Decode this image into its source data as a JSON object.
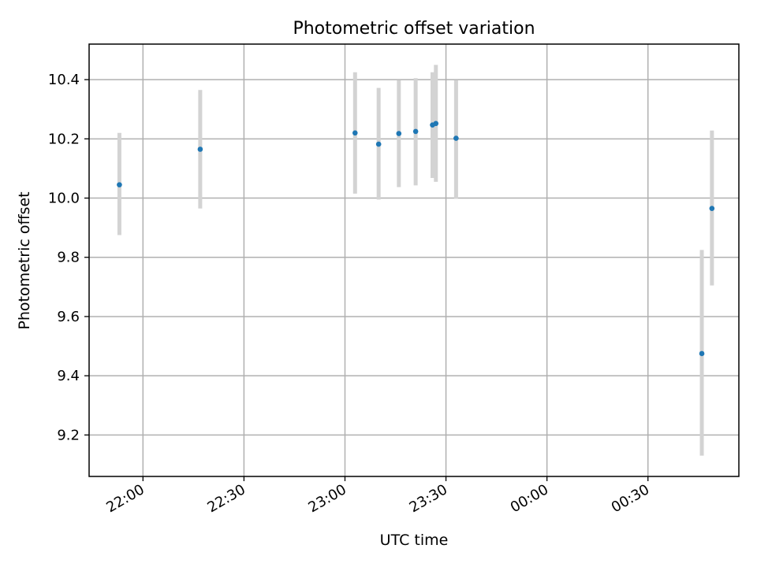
{
  "chart_data": {
    "type": "scatter",
    "title": "Photometric offset variation",
    "xlabel": "UTC time",
    "ylabel": "Photometric offset",
    "x_ticks": [
      "22:00",
      "22:30",
      "23:00",
      "23:30",
      "00:00",
      "00:30"
    ],
    "y_ticks": [
      "9.2",
      "9.4",
      "9.6",
      "9.8",
      "10.0",
      "10.2",
      "10.4"
    ],
    "ylim": [
      9.06,
      10.52
    ],
    "xlim": [
      "21:44",
      "00:57"
    ],
    "grid": true,
    "marker_color": "#1f77b4",
    "errorbar_color": "#d3d3d3",
    "points": [
      {
        "x": "21:53",
        "y": 10.045,
        "err_low": 9.875,
        "err_high": 10.22
      },
      {
        "x": "22:17",
        "y": 10.165,
        "err_low": 9.965,
        "err_high": 10.365
      },
      {
        "x": "23:03",
        "y": 10.22,
        "err_low": 10.015,
        "err_high": 10.425
      },
      {
        "x": "23:10",
        "y": 10.182,
        "err_low": 9.995,
        "err_high": 10.372
      },
      {
        "x": "23:16",
        "y": 10.218,
        "err_low": 10.037,
        "err_high": 10.398
      },
      {
        "x": "23:21",
        "y": 10.225,
        "err_low": 10.043,
        "err_high": 10.405
      },
      {
        "x": "23:26",
        "y": 10.247,
        "err_low": 10.068,
        "err_high": 10.425
      },
      {
        "x": "23:27",
        "y": 10.252,
        "err_low": 10.055,
        "err_high": 10.45
      },
      {
        "x": "23:33",
        "y": 10.202,
        "err_low": 9.998,
        "err_high": 10.398
      },
      {
        "x": "00:46",
        "y": 9.475,
        "err_low": 9.13,
        "err_high": 9.825
      },
      {
        "x": "00:49",
        "y": 9.965,
        "err_low": 9.705,
        "err_high": 10.228
      }
    ]
  }
}
